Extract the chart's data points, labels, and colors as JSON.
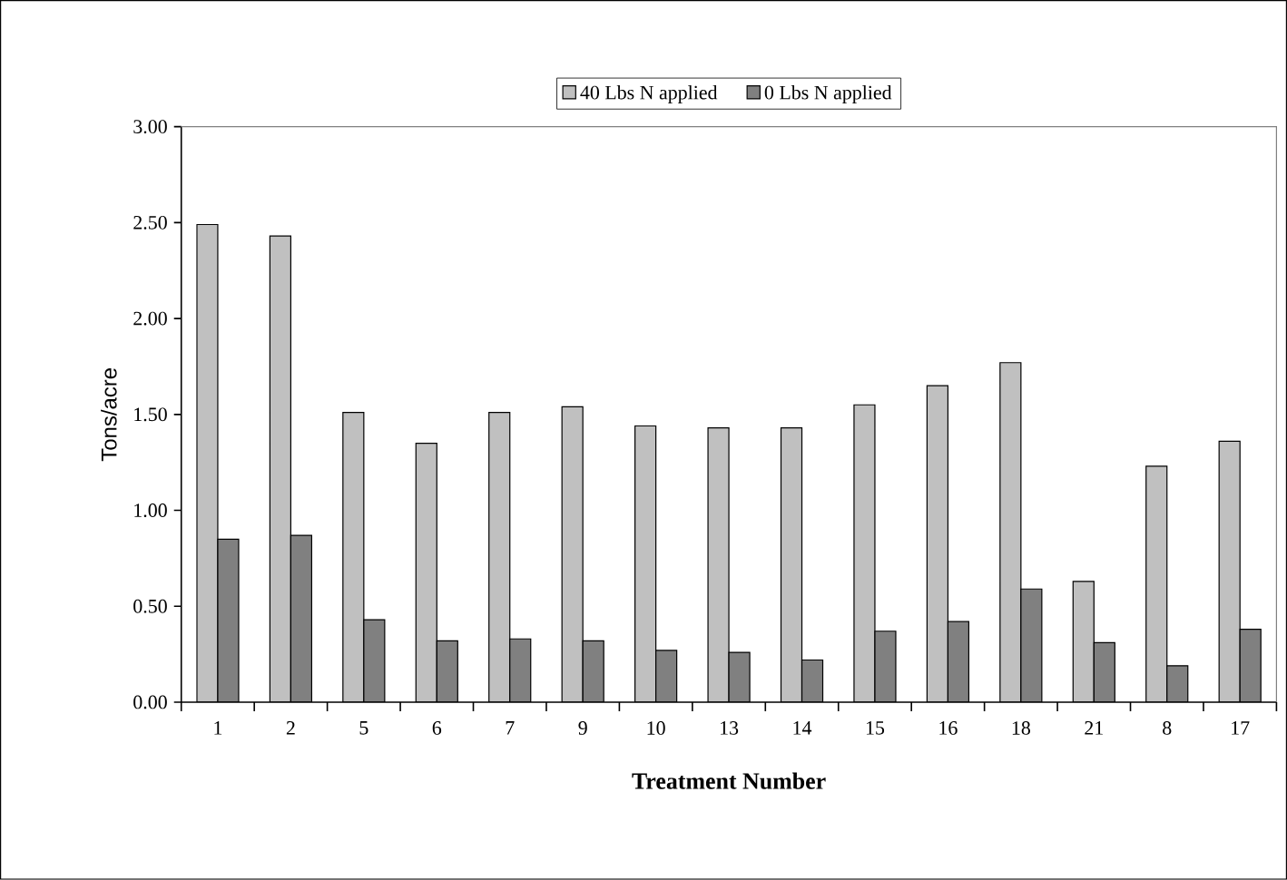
{
  "chart_data": {
    "type": "bar",
    "xlabel": "Treatment Number",
    "ylabel": "Tons/acre",
    "categories": [
      "1",
      "2",
      "5",
      "6",
      "7",
      "9",
      "10",
      "13",
      "14",
      "15",
      "16",
      "18",
      "21",
      "8",
      "17"
    ],
    "series": [
      {
        "name": "40 Lbs N applied",
        "color": "#c0c0c0",
        "values": [
          2.49,
          2.43,
          1.51,
          1.35,
          1.51,
          1.54,
          1.44,
          1.43,
          1.43,
          1.55,
          1.65,
          1.77,
          0.63,
          1.23,
          1.36
        ]
      },
      {
        "name": "0 Lbs N applied",
        "color": "#808080",
        "values": [
          0.85,
          0.87,
          0.43,
          0.32,
          0.33,
          0.32,
          0.27,
          0.26,
          0.22,
          0.37,
          0.42,
          0.59,
          0.31,
          0.19,
          0.38
        ]
      }
    ],
    "ylim": [
      0,
      3
    ],
    "yticks": [
      {
        "value": 0,
        "label": "0.00"
      },
      {
        "value": 0.5,
        "label": "0.50"
      },
      {
        "value": 1,
        "label": "1.00"
      },
      {
        "value": 1.5,
        "label": "1.50"
      },
      {
        "value": 2,
        "label": "2.00"
      },
      {
        "value": 2.5,
        "label": "2.50"
      },
      {
        "value": 3,
        "label": "3.00"
      }
    ],
    "grid": false,
    "legend": "top"
  }
}
